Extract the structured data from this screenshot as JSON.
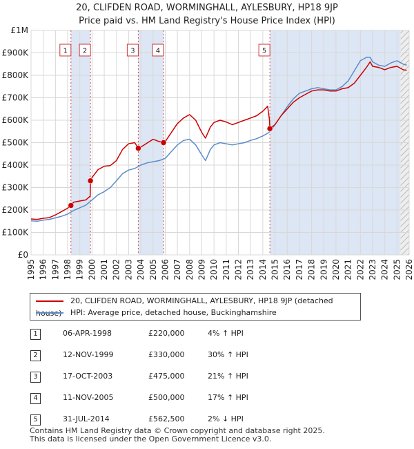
{
  "title_line1": "20, CLIFDEN ROAD, WORMINGHALL, AYLESBURY, HP18 9JP",
  "title_line2": "Price paid vs. HM Land Registry's House Price Index (HPI)",
  "colors": {
    "property": "#cc0000",
    "hpi": "#5b8cc8",
    "shade": "#dde6f4",
    "grid": "#d8d8d8",
    "vline": "#dd4444"
  },
  "chart_data": {
    "type": "line",
    "xlim": [
      1995,
      2026
    ],
    "ylim": [
      0,
      1000000
    ],
    "y_ticks": [
      {
        "value": 0,
        "label": "£0"
      },
      {
        "value": 100000,
        "label": "£100K"
      },
      {
        "value": 200000,
        "label": "£200K"
      },
      {
        "value": 300000,
        "label": "£300K"
      },
      {
        "value": 400000,
        "label": "£400K"
      },
      {
        "value": 500000,
        "label": "£500K"
      },
      {
        "value": 600000,
        "label": "£600K"
      },
      {
        "value": 700000,
        "label": "£700K"
      },
      {
        "value": 800000,
        "label": "£800K"
      },
      {
        "value": 900000,
        "label": "£900K"
      },
      {
        "value": 1000000,
        "label": "£1M"
      }
    ],
    "x_ticks": [
      "1995",
      "1996",
      "1997",
      "1998",
      "1999",
      "2000",
      "2001",
      "2002",
      "2003",
      "2004",
      "2005",
      "2006",
      "2007",
      "2008",
      "2009",
      "2010",
      "2011",
      "2012",
      "2013",
      "2014",
      "2015",
      "2016",
      "2017",
      "2018",
      "2019",
      "2020",
      "2021",
      "2022",
      "2023",
      "2024",
      "2025",
      "2026"
    ],
    "shaded_ranges": [
      [
        1998.27,
        1999.87
      ],
      [
        2003.79,
        2005.86
      ],
      [
        2014.58,
        2025.3
      ]
    ],
    "hatch_from": 2025.3,
    "series": [
      {
        "name": "20, CLIFDEN ROAD, WORMINGHALL, AYLESBURY, HP18 9JP (detached house)",
        "color": "#cc0000",
        "x": [
          1995.0,
          1995.5,
          1996.0,
          1996.5,
          1997.0,
          1997.5,
          1998.0,
          1998.27,
          1998.5,
          1999.0,
          1999.5,
          1999.85,
          1999.87,
          2000.0,
          2000.5,
          2001.0,
          2001.5,
          2002.0,
          2002.5,
          2003.0,
          2003.5,
          2003.79,
          2004.0,
          2004.5,
          2005.0,
          2005.5,
          2005.86,
          2006.0,
          2006.5,
          2007.0,
          2007.5,
          2008.0,
          2008.5,
          2009.0,
          2009.3,
          2009.7,
          2010.0,
          2010.5,
          2011.0,
          2011.5,
          2012.0,
          2012.5,
          2013.0,
          2013.5,
          2014.0,
          2014.4,
          2014.55,
          2014.58,
          2015.0,
          2015.5,
          2016.0,
          2016.5,
          2017.0,
          2017.5,
          2018.0,
          2018.5,
          2019.0,
          2019.5,
          2020.0,
          2020.5,
          2021.0,
          2021.5,
          2022.0,
          2022.5,
          2022.8,
          2023.0,
          2023.5,
          2024.0,
          2024.5,
          2025.0,
          2025.5,
          2025.8
        ],
        "values": [
          160000,
          158000,
          163000,
          166000,
          178000,
          193000,
          208000,
          220000,
          235000,
          240000,
          245000,
          262000,
          330000,
          345000,
          380000,
          395000,
          398000,
          420000,
          470000,
          495000,
          500000,
          475000,
          480000,
          498000,
          515000,
          505000,
          500000,
          505000,
          545000,
          585000,
          610000,
          625000,
          600000,
          545000,
          520000,
          570000,
          590000,
          600000,
          592000,
          580000,
          590000,
          600000,
          610000,
          620000,
          640000,
          662000,
          600000,
          562500,
          580000,
          620000,
          650000,
          680000,
          700000,
          715000,
          730000,
          735000,
          735000,
          730000,
          730000,
          740000,
          745000,
          765000,
          800000,
          835000,
          860000,
          840000,
          835000,
          825000,
          835000,
          840000,
          825000,
          822000
        ]
      },
      {
        "name": "HPI: Average price, detached house, Buckinghamshire",
        "color": "#5b8cc8",
        "x": [
          1995.0,
          1995.5,
          1996.0,
          1996.5,
          1997.0,
          1997.5,
          1998.0,
          1998.5,
          1999.0,
          1999.5,
          2000.0,
          2000.5,
          2001.0,
          2001.5,
          2002.0,
          2002.5,
          2003.0,
          2003.5,
          2004.0,
          2004.5,
          2005.0,
          2005.5,
          2006.0,
          2006.5,
          2007.0,
          2007.5,
          2008.0,
          2008.5,
          2009.0,
          2009.3,
          2009.7,
          2010.0,
          2010.5,
          2011.0,
          2011.5,
          2012.0,
          2012.5,
          2013.0,
          2013.5,
          2014.0,
          2014.5,
          2015.0,
          2015.5,
          2016.0,
          2016.5,
          2017.0,
          2017.5,
          2018.0,
          2018.5,
          2019.0,
          2019.5,
          2020.0,
          2020.5,
          2021.0,
          2021.5,
          2022.0,
          2022.5,
          2022.8,
          2023.0,
          2023.5,
          2024.0,
          2024.5,
          2025.0,
          2025.5,
          2025.8
        ],
        "values": [
          152000,
          150000,
          155000,
          158000,
          165000,
          172000,
          182000,
          198000,
          210000,
          222000,
          245000,
          268000,
          282000,
          300000,
          330000,
          362000,
          378000,
          385000,
          400000,
          410000,
          415000,
          420000,
          430000,
          460000,
          490000,
          510000,
          515000,
          490000,
          445000,
          420000,
          470000,
          490000,
          500000,
          495000,
          490000,
          495000,
          500000,
          510000,
          518000,
          530000,
          545000,
          580000,
          620000,
          660000,
          695000,
          720000,
          730000,
          740000,
          745000,
          740000,
          735000,
          735000,
          750000,
          775000,
          820000,
          865000,
          880000,
          880000,
          860000,
          845000,
          840000,
          855000,
          865000,
          850000,
          845000
        ]
      }
    ],
    "sales": [
      {
        "n": "1",
        "x": 1998.27,
        "y": 220000
      },
      {
        "n": "2",
        "x": 1999.87,
        "y": 330000
      },
      {
        "n": "3",
        "x": 2003.79,
        "y": 475000
      },
      {
        "n": "4",
        "x": 2005.86,
        "y": 500000
      },
      {
        "n": "5",
        "x": 2014.58,
        "y": 562500
      }
    ]
  },
  "legend": {
    "property_label": "20, CLIFDEN ROAD, WORMINGHALL, AYLESBURY, HP18 9JP (detached house)",
    "hpi_label": "HPI: Average price, detached house, Buckinghamshire"
  },
  "transactions": [
    {
      "n": "1",
      "date": "06-APR-1998",
      "price": "£220,000",
      "change": "4% ↑ HPI"
    },
    {
      "n": "2",
      "date": "12-NOV-1999",
      "price": "£330,000",
      "change": "30% ↑ HPI"
    },
    {
      "n": "3",
      "date": "17-OCT-2003",
      "price": "£475,000",
      "change": "21% ↑ HPI"
    },
    {
      "n": "4",
      "date": "11-NOV-2005",
      "price": "£500,000",
      "change": "17% ↑ HPI"
    },
    {
      "n": "5",
      "date": "31-JUL-2014",
      "price": "£562,500",
      "change": "2% ↓ HPI"
    }
  ],
  "footer_line1": "Contains HM Land Registry data © Crown copyright and database right 2025.",
  "footer_line2": "This data is licensed under the Open Government Licence v3.0."
}
